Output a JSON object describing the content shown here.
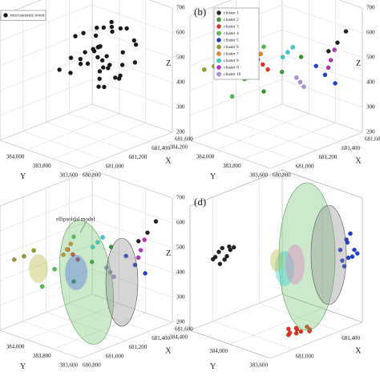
{
  "chart_data": [
    {
      "type": "scatter3d",
      "panel_label": null,
      "x_label": "X",
      "y_label": "Y",
      "z_label": "Z",
      "xlim": [
        680800,
        681600
      ],
      "ylim": [
        383600,
        384200
      ],
      "zlim": [
        200,
        700
      ],
      "xticks": [
        {
          "value": 680800,
          "label": "680,800"
        },
        {
          "value": 681000,
          "label": "681,000"
        },
        {
          "value": 681200,
          "label": "681,200"
        },
        {
          "value": 681400,
          "label": "681,400"
        },
        {
          "value": 681600,
          "label": "681,600"
        }
      ],
      "yticks": [
        {
          "value": 383600,
          "label": "383,600"
        },
        {
          "value": 383800,
          "label": "383,800"
        },
        {
          "value": 384000,
          "label": "384,000"
        },
        {
          "value": 384200,
          "label": "384,200"
        }
      ],
      "zticks": [
        200,
        300,
        400,
        500,
        600,
        700
      ],
      "grid": true,
      "legend": "upper left",
      "series": [
        {
          "name": "microseismic event",
          "color": "#1a1a1a",
          "x": [
            681200,
            681300,
            681400,
            681250,
            681350,
            681450,
            681150,
            681280,
            681380,
            681420,
            681220,
            681320,
            681480,
            681180,
            681260,
            681340,
            681440,
            681300,
            681360,
            681240,
            681400,
            681330,
            681270,
            681460,
            681210,
            681310,
            681390,
            681350,
            681230,
            681290,
            681410,
            681370,
            681190,
            681430,
            681320,
            681260,
            681380,
            681340,
            681200,
            681500
          ],
          "y": [
            383800,
            383900,
            384000,
            383850,
            383950,
            383750,
            383900,
            384050,
            383800,
            383900,
            383700,
            383850,
            383950,
            384000,
            383900,
            383750,
            383850,
            384100,
            383950,
            383800,
            383700,
            384000,
            383900,
            383850,
            383950,
            383800,
            383900,
            384050,
            383750,
            383850,
            383950,
            383800,
            383900,
            384000,
            383700,
            383850,
            383950,
            383900,
            384100,
            383800
          ],
          "values": [
            450,
            500,
            550,
            400,
            600,
            480,
            520,
            560,
            430,
            620,
            470,
            510,
            580,
            440,
            540,
            490,
            600,
            460,
            520,
            410,
            570,
            450,
            530,
            500,
            480,
            620,
            440,
            560,
            510,
            470,
            590,
            420,
            540,
            500,
            650,
            460,
            520,
            480,
            430,
            550
          ]
        }
      ]
    },
    {
      "type": "scatter3d",
      "panel_label": "(b)",
      "x_label": "X",
      "y_label": "Y",
      "z_label": "Z",
      "xlim": [
        680800,
        681600
      ],
      "ylim": [
        383600,
        384200
      ],
      "zlim": [
        200,
        700
      ],
      "xticks": [
        {
          "value": 680800,
          "label": "680,800"
        },
        {
          "value": 681000,
          "label": "681,000"
        },
        {
          "value": 681200,
          "label": "681,200"
        },
        {
          "value": 681400,
          "label": "681,400"
        },
        {
          "value": 681600,
          "label": "681,600"
        }
      ],
      "yticks": [
        {
          "value": 383600,
          "label": "383,600"
        },
        {
          "value": 383800,
          "label": "383,800"
        },
        {
          "value": 384000,
          "label": "384,000"
        },
        {
          "value": 384200,
          "label": "384,200"
        }
      ],
      "zticks": [
        200,
        300,
        400,
        500,
        600,
        700
      ],
      "grid": true,
      "legend": "upper left",
      "series": [
        {
          "name": "cluster 1",
          "color": "#222222",
          "x": [
            681500,
            681550,
            681480
          ],
          "y": [
            383700,
            383680,
            383750
          ],
          "values": [
            560,
            600,
            520
          ]
        },
        {
          "name": "cluster 2",
          "color": "#2ca02c",
          "x": [
            681250,
            681150,
            681300
          ],
          "y": [
            383900,
            383950,
            383800
          ],
          "values": [
            450,
            380,
            520
          ]
        },
        {
          "name": "cluster 3",
          "color": "#e8321e",
          "x": [
            681200,
            681220,
            681180
          ],
          "y": [
            384000,
            383980,
            384020
          ],
          "values": [
            470,
            450,
            490
          ]
        },
        {
          "name": "cluster 4",
          "color": "#4dbf4d",
          "x": [
            681100,
            681050,
            681150
          ],
          "y": [
            384050,
            384100,
            383950
          ],
          "values": [
            420,
            350,
            560
          ]
        },
        {
          "name": "cluster 5",
          "color": "#1f3fd6",
          "x": [
            681450,
            681480,
            681430
          ],
          "y": [
            383750,
            383700,
            383800
          ],
          "values": [
            430,
            400,
            460
          ]
        },
        {
          "name": "cluster 6",
          "color": "#9a9a2a",
          "x": [
            680950,
            680900,
            681000
          ],
          "y": [
            384150,
            384180,
            384120
          ],
          "values": [
            480,
            470,
            500
          ]
        },
        {
          "name": "cluster 7",
          "color": "#f08020",
          "x": [
            681150,
            681170,
            681130
          ],
          "y": [
            384000,
            383990,
            384010
          ],
          "values": [
            500,
            520,
            480
          ]
        },
        {
          "name": "cluster 8",
          "color": "#30d0d0",
          "x": [
            681300,
            681320,
            681280
          ],
          "y": [
            383900,
            383880,
            383920
          ],
          "values": [
            520,
            540,
            500
          ]
        },
        {
          "name": "cluster 9",
          "color": "#c030c0",
          "x": [
            681500,
            681520,
            681490
          ],
          "y": [
            383750,
            383740,
            383760
          ],
          "values": [
            480,
            520,
            450
          ]
        },
        {
          "name": "cluster 10",
          "color": "#b090e0",
          "x": [
            681350,
            681370,
            681330
          ],
          "y": [
            383850,
            383840,
            383860
          ],
          "values": [
            400,
            380,
            420
          ]
        }
      ]
    },
    {
      "type": "scatter3d",
      "panel_label": null,
      "x_label": "X",
      "y_label": "Y",
      "z_label": "Z",
      "annotation": "ellipsoidal model",
      "xlim": [
        680800,
        681600
      ],
      "ylim": [
        383600,
        384200
      ],
      "zlim": [
        200,
        700
      ],
      "xticks": [
        {
          "value": 680800,
          "label": "680,800"
        },
        {
          "value": 681000,
          "label": "681,000"
        },
        {
          "value": 681200,
          "label": "681,200"
        },
        {
          "value": 681400,
          "label": "681,400"
        },
        {
          "value": 681600,
          "label": "681,600"
        }
      ],
      "yticks": [
        {
          "value": 383600,
          "label": "383,600"
        },
        {
          "value": 383800,
          "label": "383,800"
        },
        {
          "value": 384000,
          "label": "384,000"
        },
        {
          "value": 384200,
          "label": "384,200"
        }
      ],
      "zticks": [
        200,
        300,
        400,
        500,
        600,
        700
      ],
      "grid": true,
      "series": [
        {
          "color": "#222222",
          "x": [
            681500,
            681550,
            681480
          ],
          "y": [
            383700,
            383680,
            383750
          ],
          "values": [
            560,
            600,
            520
          ]
        },
        {
          "color": "#2ca02c",
          "x": [
            681250,
            681150,
            681300
          ],
          "y": [
            383900,
            383950,
            383800
          ],
          "values": [
            450,
            380,
            520
          ]
        },
        {
          "color": "#e8321e",
          "x": [
            681200,
            681220,
            681180
          ],
          "y": [
            384000,
            383980,
            384020
          ],
          "values": [
            470,
            450,
            490
          ]
        },
        {
          "color": "#4dbf4d",
          "x": [
            681100,
            681050,
            681150
          ],
          "y": [
            384050,
            384100,
            383950
          ],
          "values": [
            420,
            350,
            560
          ]
        },
        {
          "color": "#1f3fd6",
          "x": [
            681450,
            681480,
            681430
          ],
          "y": [
            383750,
            383700,
            383800
          ],
          "values": [
            430,
            400,
            460
          ]
        },
        {
          "color": "#9a9a2a",
          "x": [
            680950,
            680900,
            681000
          ],
          "y": [
            384150,
            384180,
            384120
          ],
          "values": [
            480,
            470,
            500
          ]
        },
        {
          "color": "#f08020",
          "x": [
            681150,
            681170,
            681130
          ],
          "y": [
            384000,
            383990,
            384010
          ],
          "values": [
            500,
            520,
            480
          ]
        },
        {
          "color": "#30d0d0",
          "x": [
            681300,
            681320,
            681280
          ],
          "y": [
            383900,
            383880,
            383920
          ],
          "values": [
            520,
            540,
            500
          ]
        },
        {
          "color": "#c030c0",
          "x": [
            681500,
            681520,
            681490
          ],
          "y": [
            383750,
            383740,
            383760
          ],
          "values": [
            480,
            520,
            450
          ]
        },
        {
          "color": "#b090e0",
          "x": [
            681350,
            681370,
            681330
          ],
          "y": [
            383850,
            383840,
            383860
          ],
          "values": [
            400,
            380,
            420
          ]
        }
      ]
    },
    {
      "type": "scatter3d",
      "panel_label": "(d)",
      "x_label": "X",
      "y_label": "Y",
      "xlim": [
        680800,
        681600
      ],
      "ylim": [
        383600,
        384400
      ],
      "zlim": [
        200,
        700
      ],
      "xticks": [
        {
          "value": 681000,
          "label": "681,000"
        },
        {
          "value": 681400,
          "label": "681,400"
        }
      ],
      "yticks": [
        {
          "value": 383600,
          "label": "383,600"
        },
        {
          "value": 384000,
          "label": "384,000"
        },
        {
          "value": 384400,
          "label": "384,400"
        }
      ],
      "grid": true,
      "series": [
        {
          "color": "#222222",
          "x": [
            681000,
            681050,
            681100,
            681150,
            681080,
            681120,
            681020,
            681180,
            681060,
            681140
          ],
          "y": [
            384400,
            384400,
            384400,
            384400,
            384400,
            384400,
            384400,
            384400,
            384400,
            384400
          ],
          "values": [
            450,
            470,
            430,
            460,
            480,
            440,
            455,
            465,
            420,
            475
          ]
        },
        {
          "color": "#1f3fd6",
          "x": [
            681600,
            681600,
            681600,
            681600,
            681600,
            681600,
            681600,
            681600,
            681600,
            681600
          ],
          "y": [
            383700,
            383750,
            383800,
            383650,
            383720,
            383780,
            383680,
            383760,
            383740,
            383820
          ],
          "values": [
            450,
            500,
            420,
            470,
            540,
            400,
            480,
            510,
            440,
            460
          ]
        },
        {
          "color": "#e8321e",
          "x": [
            681200,
            681250,
            681300,
            681150,
            681220,
            681280,
            681180,
            681260,
            681240,
            681320
          ],
          "y": [
            383800,
            383850,
            383780,
            383820,
            383900,
            383760,
            383840,
            383870,
            383800,
            383830
          ],
          "values": [
            200,
            200,
            200,
            200,
            200,
            200,
            200,
            200,
            200,
            200
          ]
        }
      ]
    }
  ]
}
